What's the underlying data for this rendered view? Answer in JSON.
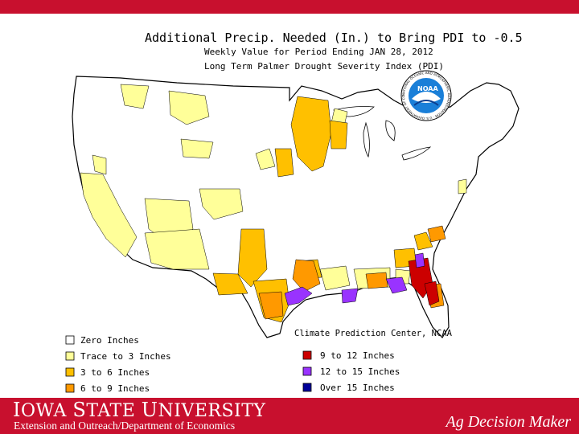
{
  "header": {
    "title": "Additional Precip. Needed (In.) to Bring PDI to -0.5",
    "subtitle1": "Weekly Value for Period Ending JAN 28, 2012",
    "subtitle2": "Long Term Palmer Drought Severity Index (PDI)"
  },
  "noaa_logo": {
    "text": "NOAA",
    "ring_text": "NATIONAL OCEANIC AND ATMOSPHERIC ADMINISTRATION · U.S. DEPARTMENT OF COMMERCE"
  },
  "credit": "Climate Prediction Center, NCAA",
  "legend": {
    "left": [
      {
        "label": "Zero Inches",
        "color": "#ffffff"
      },
      {
        "label": "Trace to 3 Inches",
        "color": "#ffff99"
      },
      {
        "label": "3 to 6 Inches",
        "color": "#ffc000"
      },
      {
        "label": "6 to 9 Inches",
        "color": "#ff9900"
      }
    ],
    "right": [
      {
        "label": "9 to 12 Inches",
        "color": "#cc0000"
      },
      {
        "label": "12 to 15 Inches",
        "color": "#9933ff"
      },
      {
        "label": "Over 15 Inches",
        "color": "#000099"
      }
    ]
  },
  "map_colors": {
    "zero": "#ffffff",
    "trace": "#ffff99",
    "three_six": "#ffc000",
    "six_nine": "#ff9900",
    "nine_twelve": "#cc0000",
    "twelve_fifteen": "#9933ff",
    "over_fifteen": "#000099",
    "border": "#000000",
    "brand_red": "#c8102e"
  },
  "footer": {
    "university_a": "I",
    "university_b": "OWA ",
    "university_c": "S",
    "university_d": "TATE ",
    "university_e": "U",
    "university_f": "NIVERSITY",
    "subline": "Extension and Outreach/Department of Economics",
    "brand": "Ag Decision Maker"
  }
}
